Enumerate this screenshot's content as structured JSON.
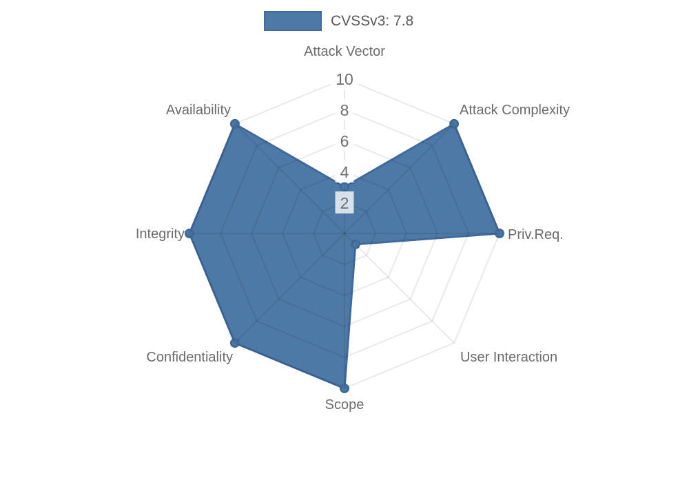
{
  "legend": {
    "label": "CVSSv3: 7.8"
  },
  "chart_data": {
    "type": "radar",
    "categories": [
      "Attack Vector",
      "Attack Complexity",
      "Priv.Req.",
      "User Interaction",
      "Scope",
      "Confidentiality",
      "Integrity",
      "Availability"
    ],
    "series": [
      {
        "name": "CVSSv3: 7.8",
        "values": [
          3,
          10,
          10,
          1,
          10,
          10,
          10,
          10
        ]
      }
    ],
    "ticks": [
      2,
      4,
      6,
      8,
      10
    ],
    "rlim": [
      0,
      10
    ],
    "grid": true,
    "grid_shape": "polygon",
    "legend_position": "top",
    "colors": {
      "fill": "#4d79a6",
      "border": "#41699a",
      "point": "#4d79a6",
      "grid_line": "rgba(0,0,0,0.09)",
      "tick_text": "#6e6e6e",
      "tick_backdrop": "rgba(255,255,255,0.78)",
      "axis_label_text": "#6b6b6b",
      "legend_text": "#595959"
    }
  }
}
